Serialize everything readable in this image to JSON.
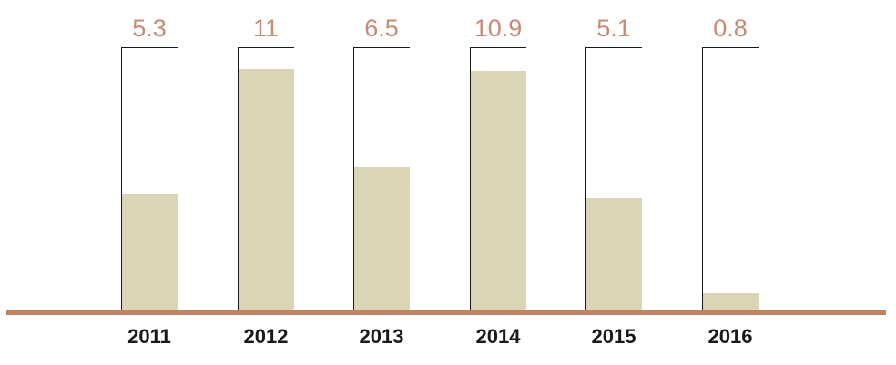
{
  "chart_data": {
    "type": "bar",
    "title": "",
    "xlabel": "",
    "ylabel": "",
    "categories": [
      "2011",
      "2012",
      "2013",
      "2014",
      "2015",
      "2016"
    ],
    "values": [
      5.3,
      11,
      6.5,
      10.9,
      5.1,
      0.8
    ],
    "data_labels": [
      "5.3",
      "11",
      "6.5",
      "10.9",
      "5.1",
      "0.8"
    ],
    "ylim": [
      0,
      12
    ],
    "grid": false,
    "legend": "none",
    "axis_ticks_visible": false,
    "bars_per_group": 1,
    "colors": {
      "bar_fill": "#dcd5b5",
      "baseline": "#be8264",
      "data_label": "#c78a77",
      "frame_line": "#1a1a1a",
      "tick_label": "#1a1a1a",
      "background": "#ffffff"
    }
  }
}
